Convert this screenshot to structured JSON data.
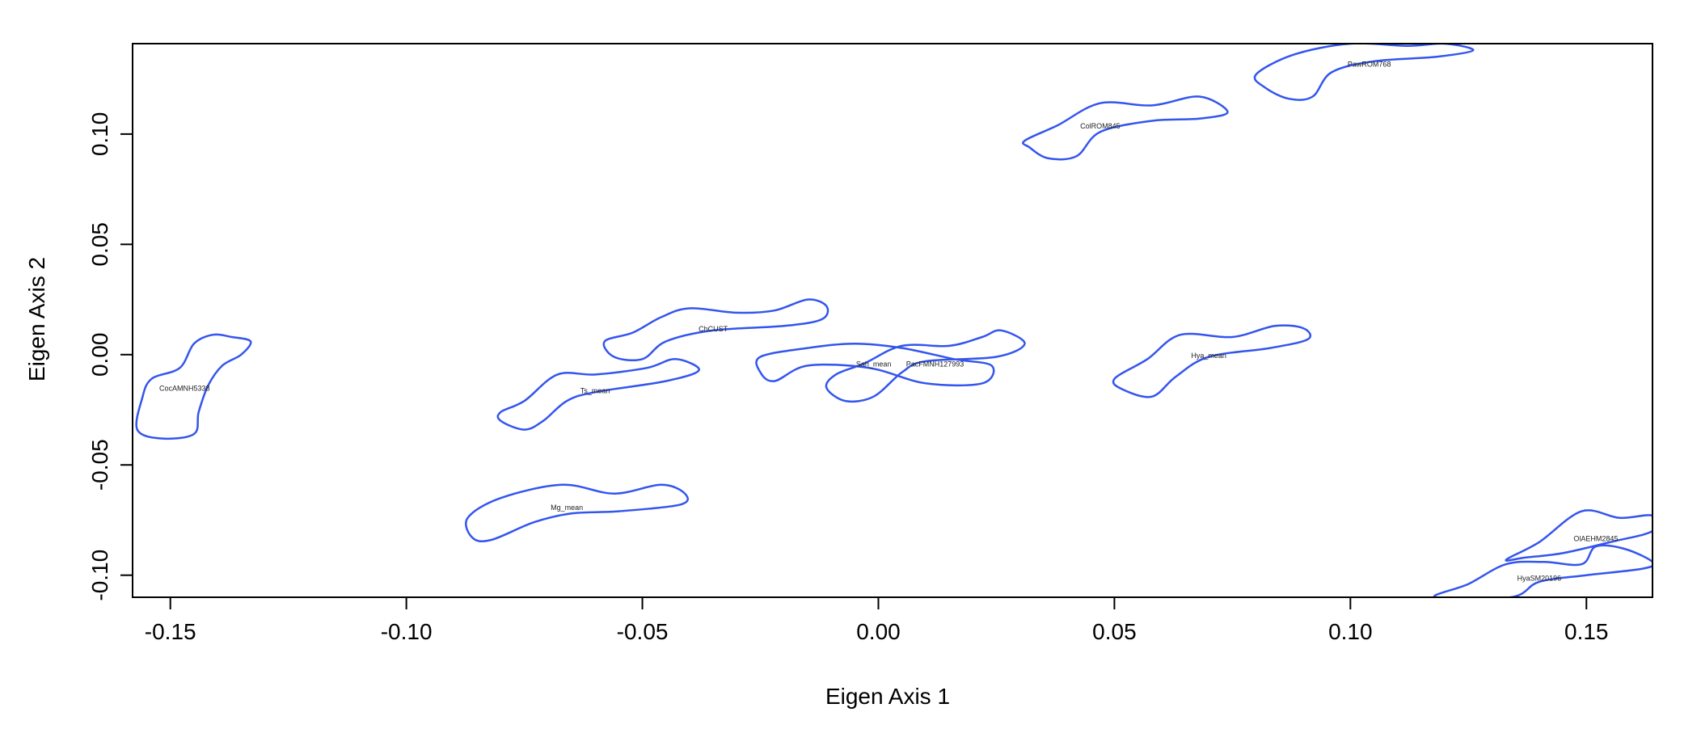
{
  "chart_data": {
    "type": "contour",
    "title": "",
    "xlabel": "Eigen Axis 1",
    "ylabel": "Eigen Axis 2",
    "xlim": [
      -0.158,
      0.164
    ],
    "ylim": [
      -0.11,
      0.141
    ],
    "x_ticks": [
      {
        "value": -0.15,
        "label": "-0.15"
      },
      {
        "value": -0.1,
        "label": "-0.10"
      },
      {
        "value": -0.05,
        "label": "-0.05"
      },
      {
        "value": 0.0,
        "label": "0.00"
      },
      {
        "value": 0.05,
        "label": "0.05"
      },
      {
        "value": 0.1,
        "label": "0.10"
      },
      {
        "value": 0.15,
        "label": "0.15"
      }
    ],
    "y_ticks": [
      {
        "value": -0.1,
        "label": "-0.10"
      },
      {
        "value": -0.05,
        "label": "-0.05"
      },
      {
        "value": 0.0,
        "label": "0.00"
      },
      {
        "value": 0.05,
        "label": "0.05"
      },
      {
        "value": 0.1,
        "label": "0.10"
      }
    ],
    "grid": false,
    "legend": "none",
    "line_color": "#3355ee",
    "contours": [
      {
        "label": "CocAMNH5338",
        "label_at": [
          -0.147,
          -0.015
        ],
        "path": [
          [
            -0.137,
            0.008
          ],
          [
            -0.141,
            0.009
          ],
          [
            -0.145,
            0.005
          ],
          [
            -0.148,
            -0.006
          ],
          [
            -0.154,
            -0.011
          ],
          [
            -0.156,
            -0.02
          ],
          [
            -0.157,
            -0.034
          ],
          [
            -0.152,
            -0.038
          ],
          [
            -0.145,
            -0.036
          ],
          [
            -0.144,
            -0.026
          ],
          [
            -0.142,
            -0.014
          ],
          [
            -0.139,
            -0.005
          ],
          [
            -0.135,
            0.0
          ],
          [
            -0.133,
            0.006
          ]
        ]
      },
      {
        "label": "ChCUST",
        "label_at": [
          -0.035,
          0.012
        ],
        "path": [
          [
            -0.058,
            0.006
          ],
          [
            -0.052,
            0.01
          ],
          [
            -0.046,
            0.017
          ],
          [
            -0.04,
            0.021
          ],
          [
            -0.03,
            0.019
          ],
          [
            -0.022,
            0.02
          ],
          [
            -0.015,
            0.025
          ],
          [
            -0.011,
            0.022
          ],
          [
            -0.012,
            0.016
          ],
          [
            -0.02,
            0.013
          ],
          [
            -0.035,
            0.011
          ],
          [
            -0.045,
            0.006
          ],
          [
            -0.05,
            -0.002
          ],
          [
            -0.056,
            -0.001
          ]
        ]
      },
      {
        "label": "Ts_mean",
        "label_at": [
          -0.06,
          -0.016
        ],
        "path": [
          [
            -0.08,
            -0.026
          ],
          [
            -0.075,
            -0.021
          ],
          [
            -0.068,
            -0.009
          ],
          [
            -0.06,
            -0.009
          ],
          [
            -0.049,
            -0.006
          ],
          [
            -0.043,
            -0.002
          ],
          [
            -0.038,
            -0.007
          ],
          [
            -0.045,
            -0.012
          ],
          [
            -0.06,
            -0.017
          ],
          [
            -0.066,
            -0.021
          ],
          [
            -0.071,
            -0.03
          ],
          [
            -0.075,
            -0.034
          ],
          [
            -0.08,
            -0.03
          ]
        ]
      },
      {
        "label": "Mg_mean",
        "label_at": [
          -0.066,
          -0.069
        ],
        "path": [
          [
            -0.087,
            -0.074
          ],
          [
            -0.08,
            -0.065
          ],
          [
            -0.067,
            -0.059
          ],
          [
            -0.056,
            -0.063
          ],
          [
            -0.046,
            -0.059
          ],
          [
            -0.041,
            -0.063
          ],
          [
            -0.042,
            -0.068
          ],
          [
            -0.055,
            -0.071
          ],
          [
            -0.065,
            -0.072
          ],
          [
            -0.073,
            -0.076
          ],
          [
            -0.082,
            -0.084
          ],
          [
            -0.086,
            -0.083
          ]
        ]
      },
      {
        "label": "Sah_mean",
        "label_at": [
          -0.001,
          -0.004
        ],
        "path": [
          [
            -0.025,
            -0.001
          ],
          [
            -0.015,
            0.003
          ],
          [
            -0.005,
            0.005
          ],
          [
            0.005,
            0.003
          ],
          [
            0.016,
            -0.002
          ],
          [
            0.024,
            -0.005
          ],
          [
            0.022,
            -0.013
          ],
          [
            0.01,
            -0.013
          ],
          [
            -0.002,
            -0.006
          ],
          [
            -0.015,
            -0.005
          ],
          [
            -0.022,
            -0.012
          ],
          [
            -0.025,
            -0.008
          ]
        ]
      },
      {
        "label": "PacFMNH127993",
        "label_at": [
          0.012,
          -0.004
        ],
        "path": [
          [
            -0.009,
            -0.009
          ],
          [
            -0.003,
            -0.004
          ],
          [
            0.005,
            0.004
          ],
          [
            0.015,
            0.004
          ],
          [
            0.022,
            0.008
          ],
          [
            0.026,
            0.011
          ],
          [
            0.031,
            0.005
          ],
          [
            0.025,
            -0.001
          ],
          [
            0.01,
            -0.003
          ],
          [
            0.005,
            -0.008
          ],
          [
            -0.001,
            -0.019
          ],
          [
            -0.007,
            -0.021
          ],
          [
            -0.011,
            -0.015
          ]
        ]
      },
      {
        "label": "Hya_mean",
        "label_at": [
          0.07,
          0.0
        ],
        "path": [
          [
            0.05,
            -0.011
          ],
          [
            0.057,
            -0.002
          ],
          [
            0.064,
            0.009
          ],
          [
            0.075,
            0.008
          ],
          [
            0.084,
            0.013
          ],
          [
            0.09,
            0.012
          ],
          [
            0.091,
            0.007
          ],
          [
            0.083,
            0.003
          ],
          [
            0.07,
            -0.001
          ],
          [
            0.063,
            -0.01
          ],
          [
            0.058,
            -0.019
          ],
          [
            0.052,
            -0.016
          ]
        ]
      },
      {
        "label": "ColROM845",
        "label_at": [
          0.047,
          0.104
        ],
        "path": [
          [
            0.031,
            0.097
          ],
          [
            0.038,
            0.104
          ],
          [
            0.047,
            0.114
          ],
          [
            0.058,
            0.113
          ],
          [
            0.068,
            0.117
          ],
          [
            0.074,
            0.11
          ],
          [
            0.068,
            0.107
          ],
          [
            0.058,
            0.106
          ],
          [
            0.047,
            0.101
          ],
          [
            0.042,
            0.09
          ],
          [
            0.036,
            0.089
          ],
          [
            0.032,
            0.094
          ]
        ]
      },
      {
        "label": "PawROM768",
        "label_at": [
          0.104,
          0.132
        ],
        "path": [
          [
            0.08,
            0.127
          ],
          [
            0.088,
            0.136
          ],
          [
            0.1,
            0.141
          ],
          [
            0.112,
            0.14
          ],
          [
            0.12,
            0.141
          ],
          [
            0.126,
            0.138
          ],
          [
            0.118,
            0.135
          ],
          [
            0.105,
            0.133
          ],
          [
            0.096,
            0.128
          ],
          [
            0.092,
            0.117
          ],
          [
            0.087,
            0.116
          ],
          [
            0.082,
            0.121
          ]
        ]
      },
      {
        "label": "OlAEHM2845",
        "label_at": [
          0.152,
          -0.083
        ],
        "path": [
          [
            0.133,
            -0.093
          ],
          [
            0.14,
            -0.085
          ],
          [
            0.149,
            -0.071
          ],
          [
            0.157,
            -0.074
          ],
          [
            0.164,
            -0.073
          ],
          [
            0.164,
            -0.08
          ],
          [
            0.155,
            -0.085
          ],
          [
            0.145,
            -0.09
          ],
          [
            0.137,
            -0.092
          ]
        ]
      },
      {
        "label": "HyaSM20196",
        "label_at": [
          0.14,
          -0.101
        ],
        "path": [
          [
            0.118,
            -0.11
          ],
          [
            0.125,
            -0.104
          ],
          [
            0.133,
            -0.095
          ],
          [
            0.141,
            -0.094
          ],
          [
            0.149,
            -0.095
          ],
          [
            0.152,
            -0.087
          ],
          [
            0.158,
            -0.088
          ],
          [
            0.164,
            -0.094
          ],
          [
            0.162,
            -0.097
          ],
          [
            0.15,
            -0.1
          ],
          [
            0.14,
            -0.103
          ],
          [
            0.134,
            -0.11
          ]
        ]
      }
    ]
  }
}
